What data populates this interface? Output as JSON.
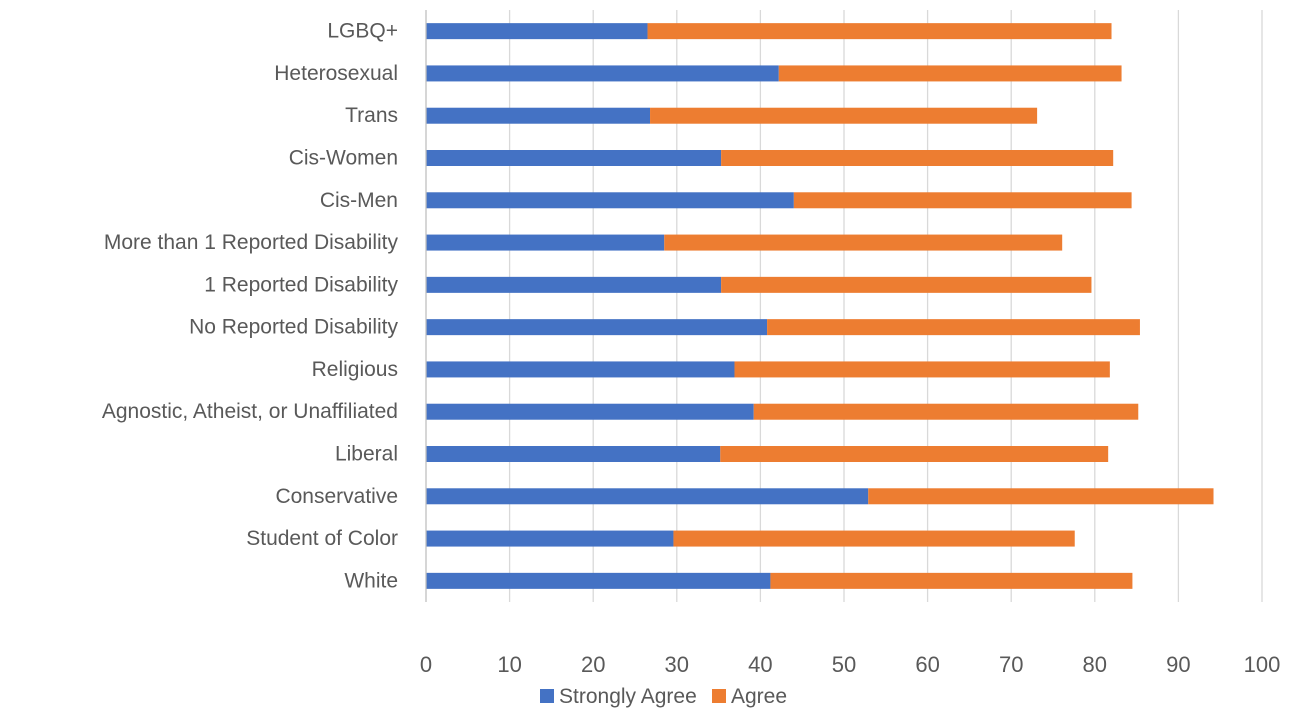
{
  "chart_data": {
    "type": "bar",
    "orientation": "horizontal",
    "stacked": true,
    "categories": [
      "LGBQ+",
      "Heterosexual",
      "Trans",
      "Cis-Women",
      "Cis-Men",
      "More than 1 Reported Disability",
      "1 Reported Disability",
      "No Reported Disability",
      "Religious",
      "Agnostic, Atheist, or Unaffiliated",
      "Liberal",
      "Conservative",
      "Student of Color",
      "White"
    ],
    "series": [
      {
        "name": "Strongly Agree",
        "color": "#4472c4",
        "values": [
          26.5,
          42.2,
          26.8,
          35.3,
          44.0,
          28.5,
          35.3,
          40.8,
          36.9,
          39.2,
          35.2,
          52.9,
          29.6,
          41.2
        ]
      },
      {
        "name": "Agree",
        "color": "#ed7d31",
        "values": [
          55.5,
          41.0,
          46.3,
          46.9,
          40.4,
          47.6,
          44.3,
          44.6,
          44.9,
          46.0,
          46.4,
          41.3,
          48.0,
          43.3
        ]
      }
    ],
    "xlim": [
      0,
      100
    ],
    "x_ticks": [
      "0",
      "10",
      "20",
      "30",
      "40",
      "50",
      "60",
      "70",
      "80",
      "90",
      "100"
    ],
    "grid": true,
    "legend_position": "bottom"
  }
}
